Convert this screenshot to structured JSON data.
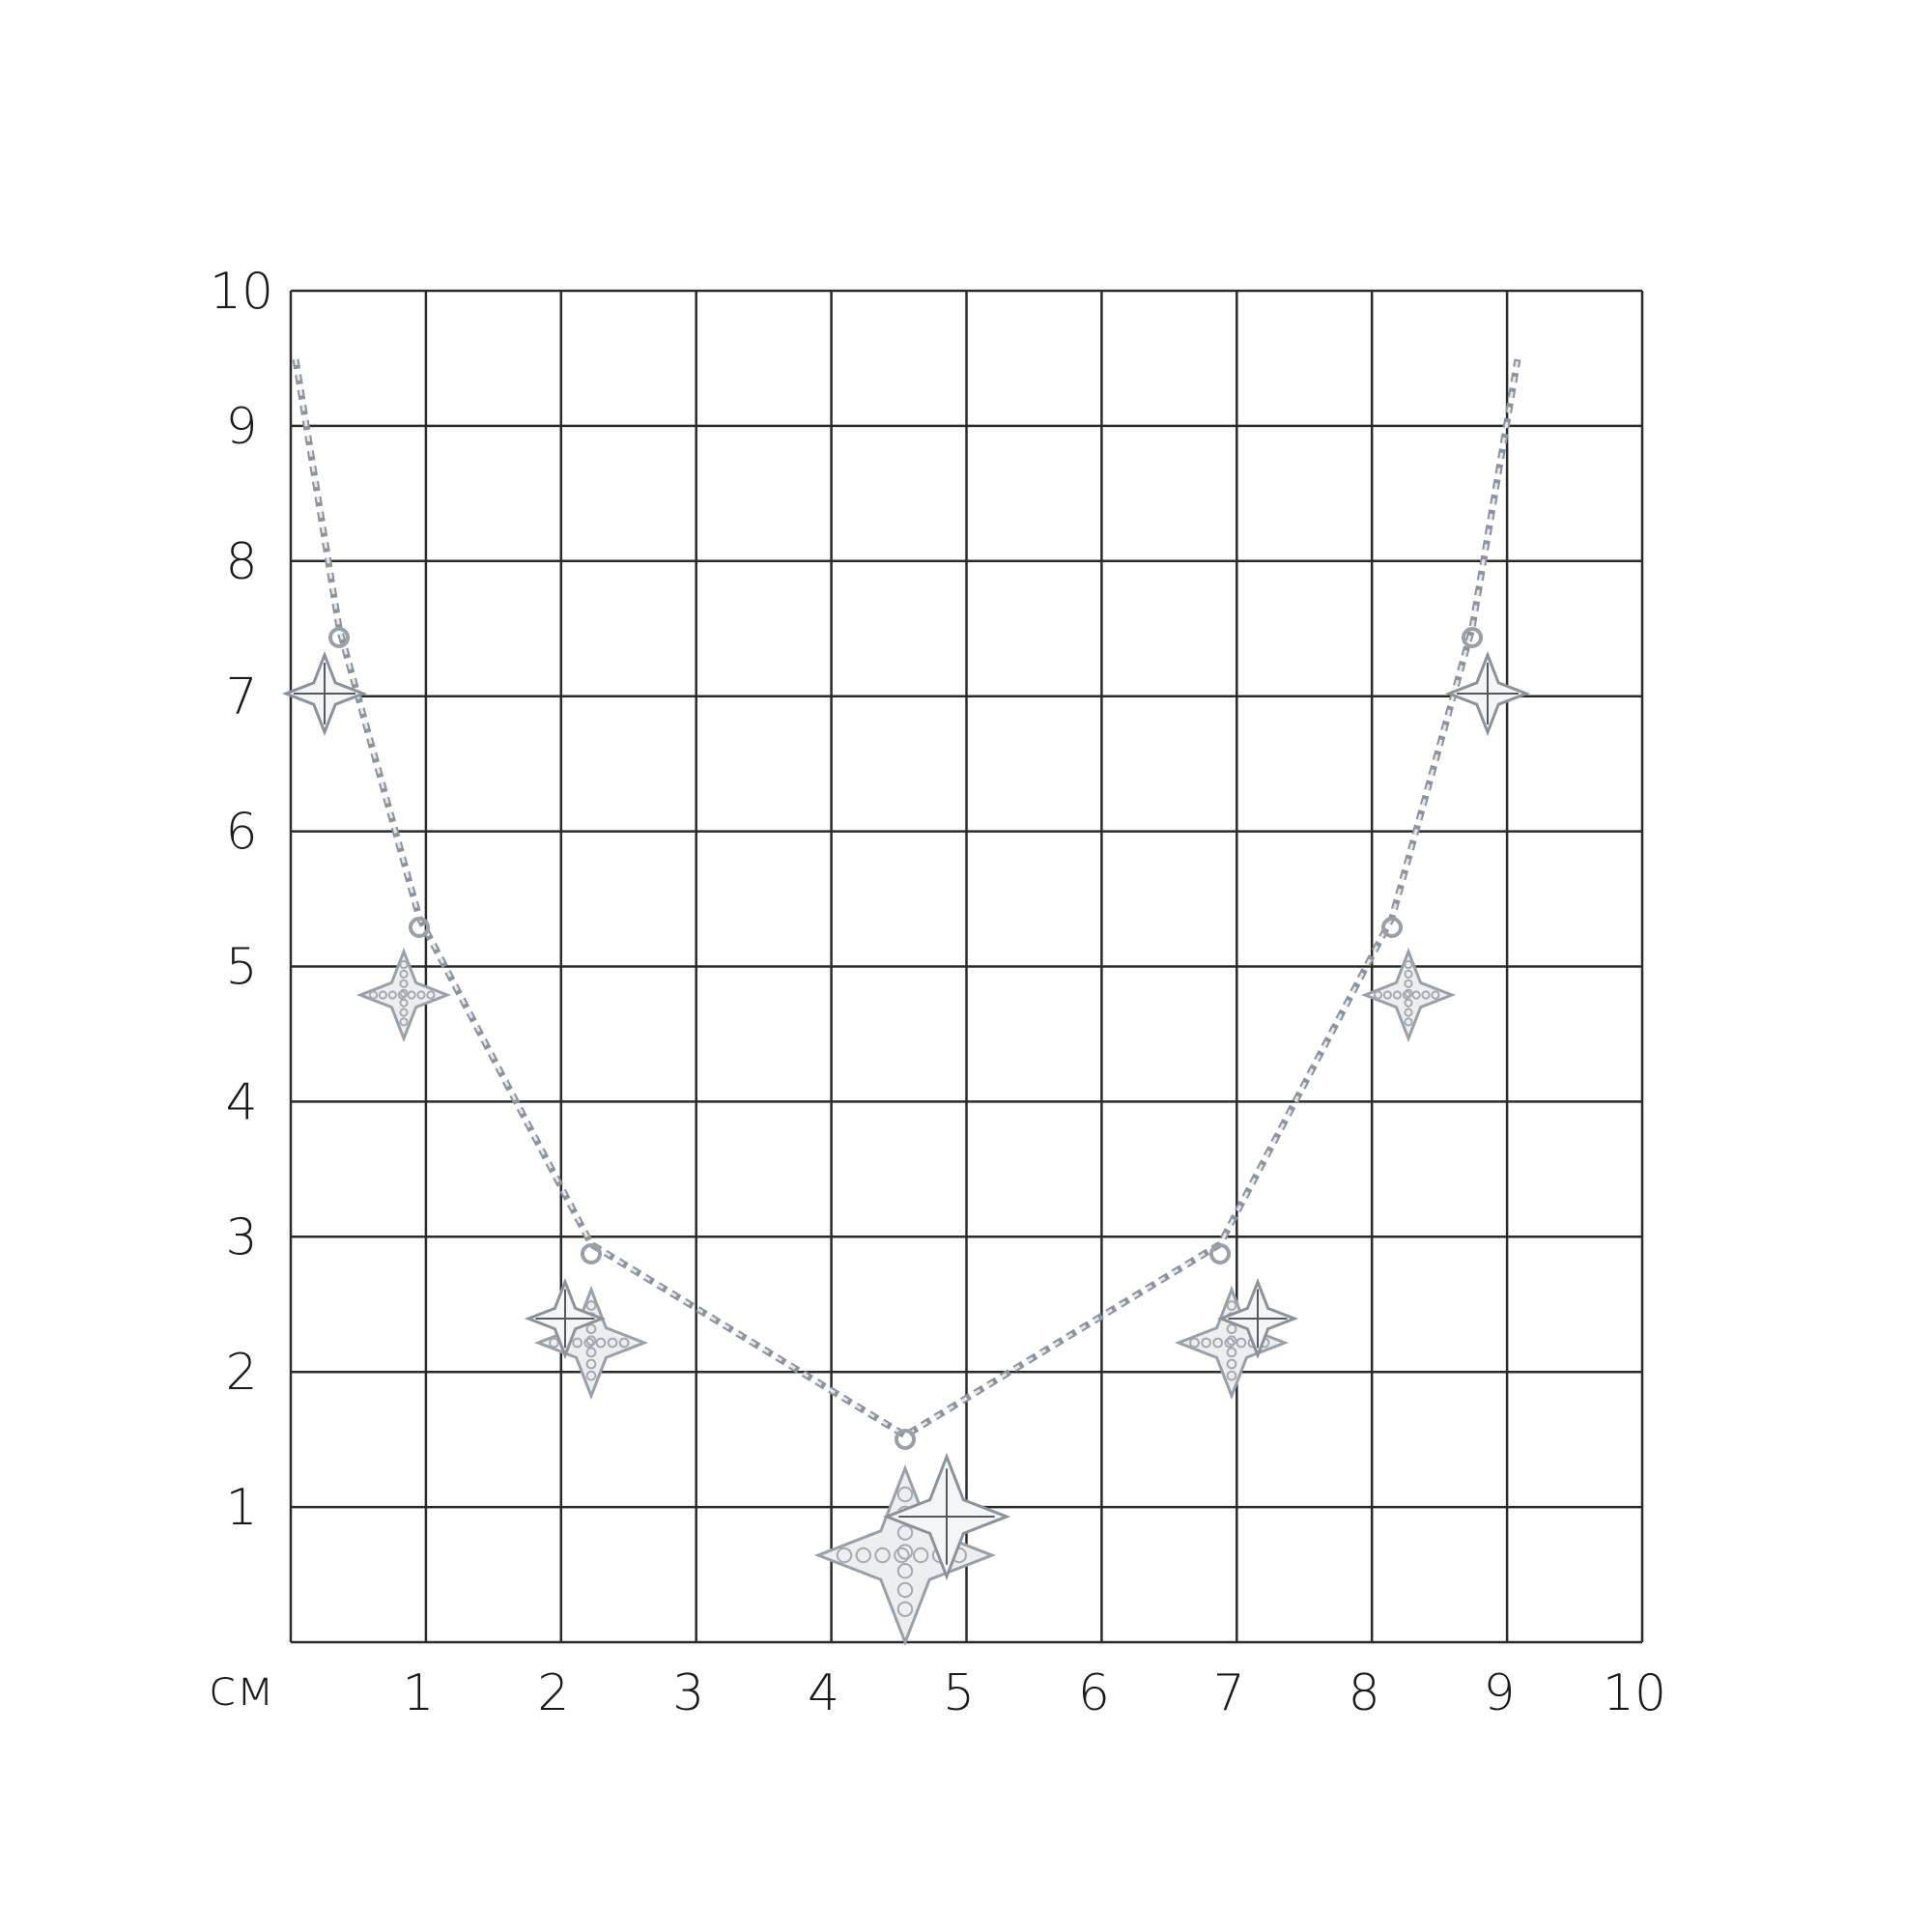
{
  "unit_label": "см",
  "y_axis_labels": [
    "1",
    "2",
    "3",
    "4",
    "5",
    "6",
    "7",
    "8",
    "9",
    "10"
  ],
  "x_axis_labels": [
    "1",
    "2",
    "3",
    "4",
    "5",
    "6",
    "7",
    "8",
    "9",
    "10"
  ],
  "colors": {
    "grid": "#2a2a2a",
    "metal": "#b8bcc2",
    "background": "#ffffff"
  }
}
